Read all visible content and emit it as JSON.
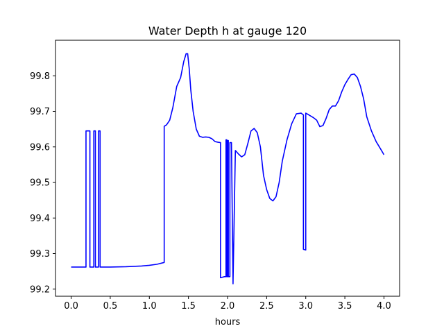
{
  "chart_data": {
    "type": "line",
    "title": "Water Depth h at gauge 120",
    "xlabel": "hours",
    "ylabel": "",
    "xlim": [
      -0.2,
      4.2
    ],
    "ylim": [
      99.18,
      99.9
    ],
    "xticks": [
      0.0,
      0.5,
      1.0,
      1.5,
      2.0,
      2.5,
      3.0,
      3.5,
      4.0
    ],
    "xtick_labels": [
      "0.0",
      "0.5",
      "1.0",
      "1.5",
      "2.0",
      "2.5",
      "3.0",
      "3.5",
      "4.0"
    ],
    "yticks": [
      99.2,
      99.3,
      99.4,
      99.5,
      99.6,
      99.7,
      99.8
    ],
    "ytick_labels": [
      "99.2",
      "99.3",
      "99.4",
      "99.5",
      "99.6",
      "99.7",
      "99.8"
    ],
    "grid": false,
    "color": "#0000ff",
    "series": [
      {
        "x": [
          0.0,
          0.19,
          0.19,
          0.24,
          0.24,
          0.29,
          0.29,
          0.31,
          0.31,
          0.35,
          0.35,
          0.37,
          0.37,
          0.5,
          0.7,
          0.9,
          1.0,
          1.1,
          1.19,
          1.19,
          1.22,
          1.26,
          1.3,
          1.35,
          1.4,
          1.44,
          1.47,
          1.49,
          1.51,
          1.53,
          1.56,
          1.6,
          1.64,
          1.68,
          1.72,
          1.76,
          1.8,
          1.84,
          1.88,
          1.91,
          1.91,
          1.96,
          1.98,
          1.98,
          1.99,
          1.99,
          2.0,
          2.0,
          2.01,
          2.01,
          2.03,
          2.03,
          2.05,
          2.07,
          2.07,
          2.1,
          2.14,
          2.18,
          2.22,
          2.26,
          2.3,
          2.34,
          2.38,
          2.42,
          2.46,
          2.5,
          2.54,
          2.58,
          2.62,
          2.66,
          2.7,
          2.76,
          2.82,
          2.88,
          2.94,
          2.97,
          2.97,
          3.0,
          3.0,
          3.04,
          3.1,
          3.14,
          3.18,
          3.22,
          3.26,
          3.3,
          3.34,
          3.38,
          3.42,
          3.46,
          3.5,
          3.54,
          3.58,
          3.62,
          3.66,
          3.7,
          3.74,
          3.78,
          3.84,
          3.9,
          3.96,
          4.0
        ],
        "y": [
          99.262,
          99.262,
          99.645,
          99.645,
          99.262,
          99.262,
          99.645,
          99.645,
          99.262,
          99.262,
          99.645,
          99.645,
          99.262,
          99.262,
          99.263,
          99.265,
          99.267,
          99.27,
          99.275,
          99.658,
          99.662,
          99.675,
          99.71,
          99.77,
          99.795,
          99.84,
          99.862,
          99.862,
          99.82,
          99.76,
          99.7,
          99.65,
          99.63,
          99.627,
          99.628,
          99.627,
          99.623,
          99.615,
          99.613,
          99.612,
          99.232,
          99.235,
          99.235,
          99.62,
          99.62,
          99.235,
          99.235,
          99.618,
          99.618,
          99.235,
          99.235,
          99.612,
          99.612,
          99.22,
          99.215,
          99.59,
          99.58,
          99.572,
          99.578,
          99.61,
          99.645,
          99.652,
          99.64,
          99.6,
          99.52,
          99.48,
          99.455,
          99.448,
          99.46,
          99.5,
          99.56,
          99.62,
          99.665,
          99.693,
          99.695,
          99.69,
          99.312,
          99.31,
          99.695,
          99.69,
          99.682,
          99.675,
          99.657,
          99.66,
          99.68,
          99.705,
          99.715,
          99.715,
          99.73,
          99.755,
          99.775,
          99.79,
          99.803,
          99.805,
          99.795,
          99.77,
          99.735,
          99.685,
          99.645,
          99.615,
          99.593,
          99.578
        ]
      }
    ]
  }
}
